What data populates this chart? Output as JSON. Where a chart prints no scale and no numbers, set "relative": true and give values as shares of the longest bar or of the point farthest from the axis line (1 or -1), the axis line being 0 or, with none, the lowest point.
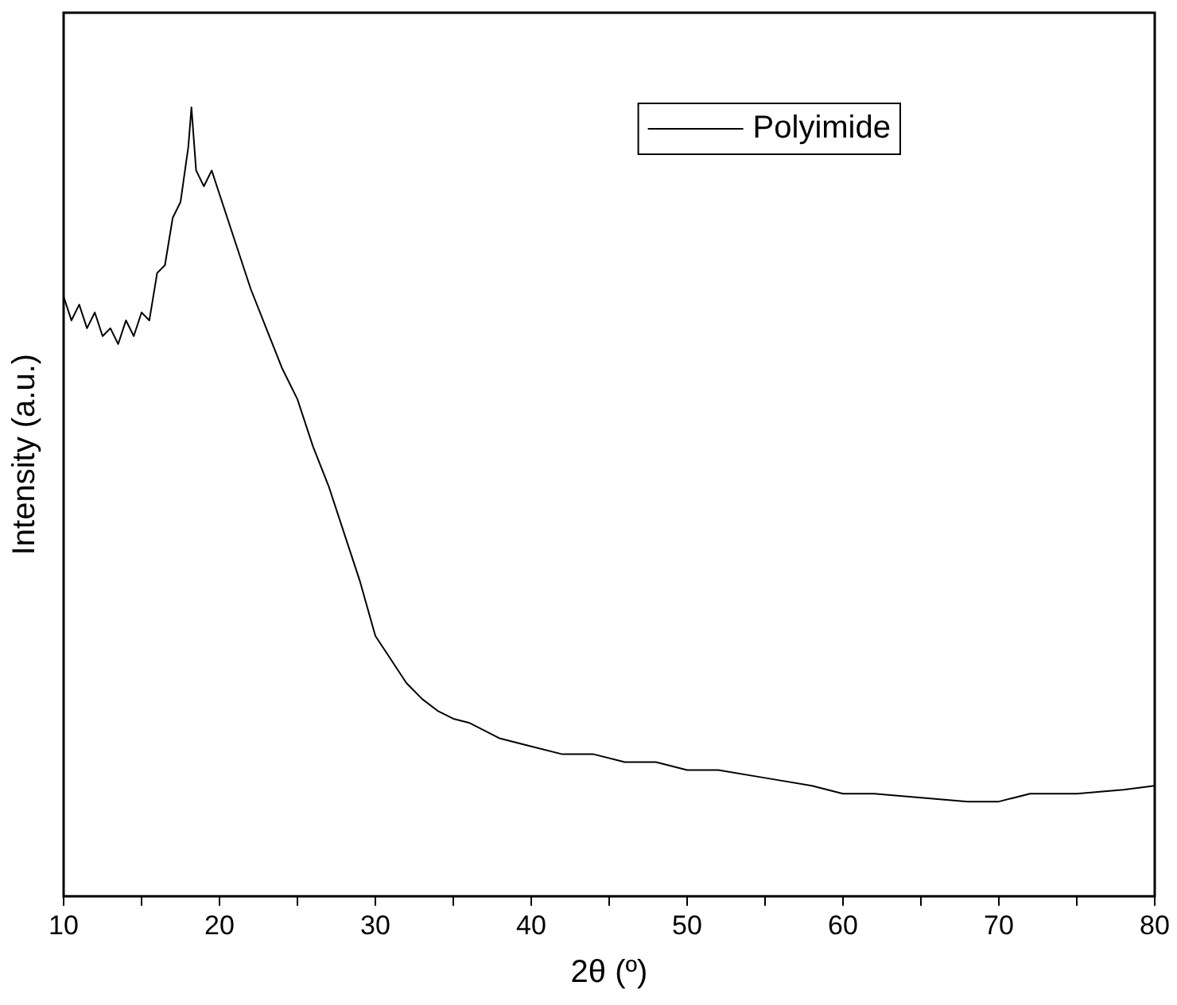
{
  "chart_data": {
    "type": "line",
    "xlabel": "2θ (º)",
    "ylabel": "Intensity (a.u.)",
    "relative": true,
    "legend": "top right",
    "grid": false,
    "marker": "none",
    "line_style": "solid",
    "xlim": [
      10,
      80
    ],
    "xticks": [
      10,
      {
        "value": 15,
        "label": null
      },
      20,
      {
        "value": 25,
        "label": null
      },
      30,
      {
        "value": 35,
        "label": null
      },
      40,
      {
        "value": 45,
        "label": null
      },
      50,
      {
        "value": 55,
        "label": null
      },
      60,
      {
        "value": 65,
        "label": null
      },
      70,
      {
        "value": 75,
        "label": null
      },
      80
    ],
    "series": [
      {
        "name": "Polyimide",
        "color": "#000000",
        "x": [
          10,
          10.5,
          11,
          11.5,
          12,
          12.5,
          13,
          13.5,
          14,
          14.5,
          15,
          15.5,
          16,
          16.5,
          17,
          17.5,
          18,
          18.2,
          18.5,
          19,
          19.5,
          20,
          20.5,
          21,
          22,
          23,
          24,
          25,
          26,
          27,
          28,
          29,
          30,
          31,
          32,
          33,
          34,
          35,
          36,
          38,
          40,
          42,
          44,
          46,
          48,
          50,
          52,
          55,
          58,
          60,
          62,
          65,
          68,
          70,
          72,
          75,
          78,
          80
        ],
        "values": [
          0.76,
          0.73,
          0.75,
          0.72,
          0.74,
          0.71,
          0.72,
          0.7,
          0.73,
          0.71,
          0.74,
          0.73,
          0.79,
          0.8,
          0.86,
          0.88,
          0.95,
          1,
          0.92,
          0.9,
          0.92,
          0.89,
          0.86,
          0.83,
          0.77,
          0.72,
          0.67,
          0.63,
          0.57,
          0.52,
          0.46,
          0.4,
          0.33,
          0.3,
          0.27,
          0.25,
          0.235,
          0.225,
          0.22,
          0.2,
          0.19,
          0.18,
          0.18,
          0.17,
          0.17,
          0.16,
          0.16,
          0.15,
          0.14,
          0.13,
          0.13,
          0.125,
          0.12,
          0.12,
          0.13,
          0.13,
          0.135,
          0.14
        ]
      }
    ]
  }
}
